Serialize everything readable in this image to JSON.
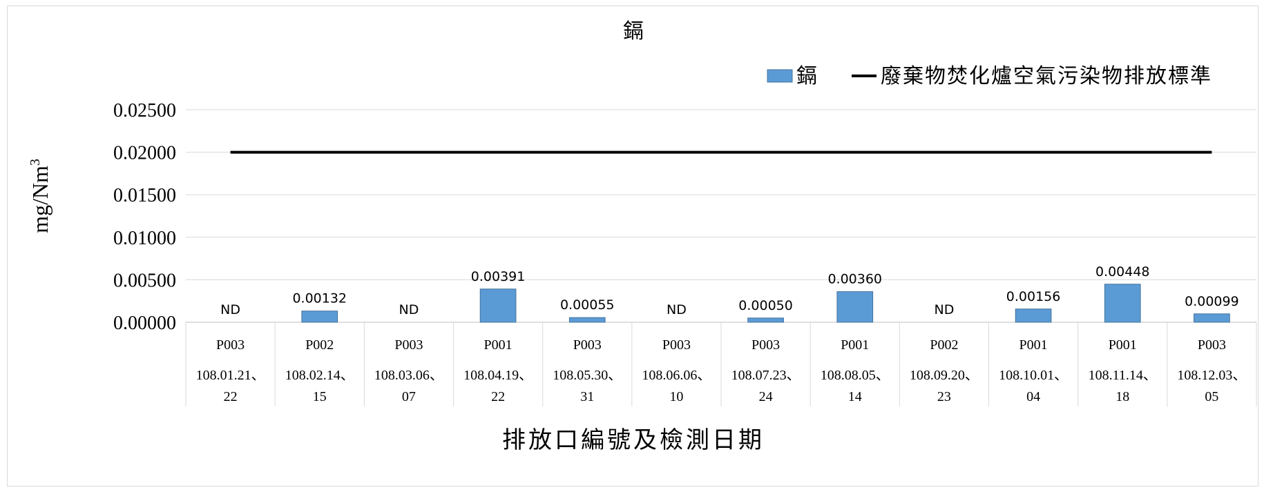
{
  "chart_data": {
    "type": "bar",
    "title": "鎘",
    "xlabel": "排放口編號及檢測日期",
    "ylabel": "mg/Nm",
    "ylabel_superscript": "3",
    "ylim": [
      0,
      0.025
    ],
    "yticks": [
      "0.00000",
      "0.00500",
      "0.01000",
      "0.01500",
      "0.02000",
      "0.02500"
    ],
    "ytick_values": [
      0,
      0.005,
      0.01,
      0.015,
      0.02,
      0.025
    ],
    "grid": true,
    "legend_position": "top-right",
    "categories": [
      {
        "outlet": "P003",
        "date_line1": "108.01.21、",
        "date_line2": "22"
      },
      {
        "outlet": "P002",
        "date_line1": "108.02.14、",
        "date_line2": "15"
      },
      {
        "outlet": "P003",
        "date_line1": "108.03.06、",
        "date_line2": "07"
      },
      {
        "outlet": "P001",
        "date_line1": "108.04.19、",
        "date_line2": "22"
      },
      {
        "outlet": "P003",
        "date_line1": "108.05.30、",
        "date_line2": "31"
      },
      {
        "outlet": "P003",
        "date_line1": "108.06.06、",
        "date_line2": "10"
      },
      {
        "outlet": "P003",
        "date_line1": "108.07.23、",
        "date_line2": "24"
      },
      {
        "outlet": "P001",
        "date_line1": "108.08.05、",
        "date_line2": "14"
      },
      {
        "outlet": "P002",
        "date_line1": "108.09.20、",
        "date_line2": "23"
      },
      {
        "outlet": "P001",
        "date_line1": "108.10.01、",
        "date_line2": "04"
      },
      {
        "outlet": "P001",
        "date_line1": "108.11.14、",
        "date_line2": "18"
      },
      {
        "outlet": "P003",
        "date_line1": "108.12.03、",
        "date_line2": "05"
      }
    ],
    "series": [
      {
        "name": "鎘",
        "kind": "bar",
        "color": "#5b9bd5",
        "values": [
          0,
          0.00132,
          0,
          0.00391,
          0.00055,
          0,
          0.0005,
          0.0036,
          0,
          0.00156,
          0.00448,
          0.00099
        ],
        "labels": [
          "ND",
          "0.00132",
          "ND",
          "0.00391",
          "0.00055",
          "ND",
          "0.00050",
          "0.00360",
          "ND",
          "0.00156",
          "0.00448",
          "0.00099"
        ]
      },
      {
        "name": "廢棄物焚化爐空氣污染物排放標準",
        "kind": "line",
        "color": "#000000",
        "value": 0.02
      }
    ]
  }
}
